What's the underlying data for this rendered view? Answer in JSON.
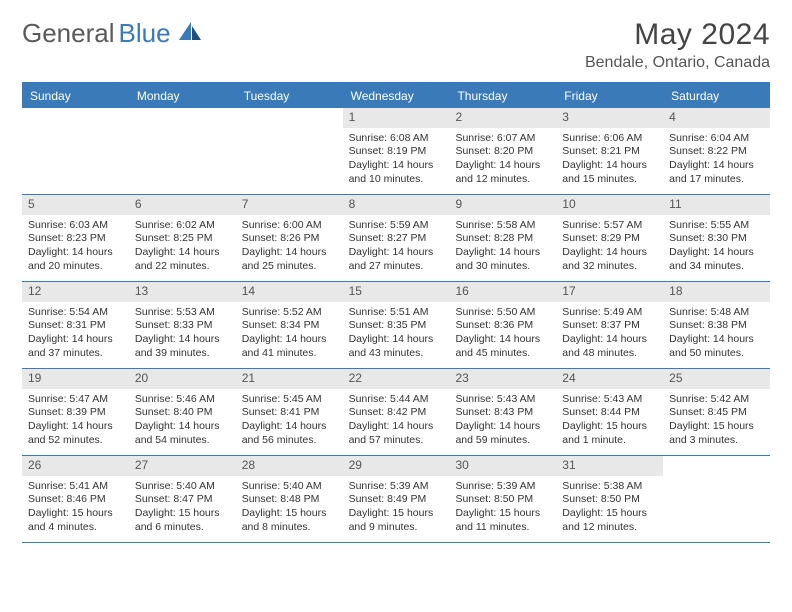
{
  "brand": {
    "part1": "General",
    "part2": "Blue"
  },
  "title": "May 2024",
  "location": "Bendale, Ontario, Canada",
  "colors": {
    "accent": "#3a7ab8",
    "dayNumBg": "#e8e8e8",
    "text": "#333333",
    "headerText": "#ffffff",
    "background": "#ffffff"
  },
  "dayHeaders": [
    "Sunday",
    "Monday",
    "Tuesday",
    "Wednesday",
    "Thursday",
    "Friday",
    "Saturday"
  ],
  "weeks": [
    [
      {
        "empty": true
      },
      {
        "empty": true
      },
      {
        "empty": true
      },
      {
        "num": "1",
        "sunrise": "Sunrise: 6:08 AM",
        "sunset": "Sunset: 8:19 PM",
        "day1": "Daylight: 14 hours",
        "day2": "and 10 minutes."
      },
      {
        "num": "2",
        "sunrise": "Sunrise: 6:07 AM",
        "sunset": "Sunset: 8:20 PM",
        "day1": "Daylight: 14 hours",
        "day2": "and 12 minutes."
      },
      {
        "num": "3",
        "sunrise": "Sunrise: 6:06 AM",
        "sunset": "Sunset: 8:21 PM",
        "day1": "Daylight: 14 hours",
        "day2": "and 15 minutes."
      },
      {
        "num": "4",
        "sunrise": "Sunrise: 6:04 AM",
        "sunset": "Sunset: 8:22 PM",
        "day1": "Daylight: 14 hours",
        "day2": "and 17 minutes."
      }
    ],
    [
      {
        "num": "5",
        "sunrise": "Sunrise: 6:03 AM",
        "sunset": "Sunset: 8:23 PM",
        "day1": "Daylight: 14 hours",
        "day2": "and 20 minutes."
      },
      {
        "num": "6",
        "sunrise": "Sunrise: 6:02 AM",
        "sunset": "Sunset: 8:25 PM",
        "day1": "Daylight: 14 hours",
        "day2": "and 22 minutes."
      },
      {
        "num": "7",
        "sunrise": "Sunrise: 6:00 AM",
        "sunset": "Sunset: 8:26 PM",
        "day1": "Daylight: 14 hours",
        "day2": "and 25 minutes."
      },
      {
        "num": "8",
        "sunrise": "Sunrise: 5:59 AM",
        "sunset": "Sunset: 8:27 PM",
        "day1": "Daylight: 14 hours",
        "day2": "and 27 minutes."
      },
      {
        "num": "9",
        "sunrise": "Sunrise: 5:58 AM",
        "sunset": "Sunset: 8:28 PM",
        "day1": "Daylight: 14 hours",
        "day2": "and 30 minutes."
      },
      {
        "num": "10",
        "sunrise": "Sunrise: 5:57 AM",
        "sunset": "Sunset: 8:29 PM",
        "day1": "Daylight: 14 hours",
        "day2": "and 32 minutes."
      },
      {
        "num": "11",
        "sunrise": "Sunrise: 5:55 AM",
        "sunset": "Sunset: 8:30 PM",
        "day1": "Daylight: 14 hours",
        "day2": "and 34 minutes."
      }
    ],
    [
      {
        "num": "12",
        "sunrise": "Sunrise: 5:54 AM",
        "sunset": "Sunset: 8:31 PM",
        "day1": "Daylight: 14 hours",
        "day2": "and 37 minutes."
      },
      {
        "num": "13",
        "sunrise": "Sunrise: 5:53 AM",
        "sunset": "Sunset: 8:33 PM",
        "day1": "Daylight: 14 hours",
        "day2": "and 39 minutes."
      },
      {
        "num": "14",
        "sunrise": "Sunrise: 5:52 AM",
        "sunset": "Sunset: 8:34 PM",
        "day1": "Daylight: 14 hours",
        "day2": "and 41 minutes."
      },
      {
        "num": "15",
        "sunrise": "Sunrise: 5:51 AM",
        "sunset": "Sunset: 8:35 PM",
        "day1": "Daylight: 14 hours",
        "day2": "and 43 minutes."
      },
      {
        "num": "16",
        "sunrise": "Sunrise: 5:50 AM",
        "sunset": "Sunset: 8:36 PM",
        "day1": "Daylight: 14 hours",
        "day2": "and 45 minutes."
      },
      {
        "num": "17",
        "sunrise": "Sunrise: 5:49 AM",
        "sunset": "Sunset: 8:37 PM",
        "day1": "Daylight: 14 hours",
        "day2": "and 48 minutes."
      },
      {
        "num": "18",
        "sunrise": "Sunrise: 5:48 AM",
        "sunset": "Sunset: 8:38 PM",
        "day1": "Daylight: 14 hours",
        "day2": "and 50 minutes."
      }
    ],
    [
      {
        "num": "19",
        "sunrise": "Sunrise: 5:47 AM",
        "sunset": "Sunset: 8:39 PM",
        "day1": "Daylight: 14 hours",
        "day2": "and 52 minutes."
      },
      {
        "num": "20",
        "sunrise": "Sunrise: 5:46 AM",
        "sunset": "Sunset: 8:40 PM",
        "day1": "Daylight: 14 hours",
        "day2": "and 54 minutes."
      },
      {
        "num": "21",
        "sunrise": "Sunrise: 5:45 AM",
        "sunset": "Sunset: 8:41 PM",
        "day1": "Daylight: 14 hours",
        "day2": "and 56 minutes."
      },
      {
        "num": "22",
        "sunrise": "Sunrise: 5:44 AM",
        "sunset": "Sunset: 8:42 PM",
        "day1": "Daylight: 14 hours",
        "day2": "and 57 minutes."
      },
      {
        "num": "23",
        "sunrise": "Sunrise: 5:43 AM",
        "sunset": "Sunset: 8:43 PM",
        "day1": "Daylight: 14 hours",
        "day2": "and 59 minutes."
      },
      {
        "num": "24",
        "sunrise": "Sunrise: 5:43 AM",
        "sunset": "Sunset: 8:44 PM",
        "day1": "Daylight: 15 hours",
        "day2": "and 1 minute."
      },
      {
        "num": "25",
        "sunrise": "Sunrise: 5:42 AM",
        "sunset": "Sunset: 8:45 PM",
        "day1": "Daylight: 15 hours",
        "day2": "and 3 minutes."
      }
    ],
    [
      {
        "num": "26",
        "sunrise": "Sunrise: 5:41 AM",
        "sunset": "Sunset: 8:46 PM",
        "day1": "Daylight: 15 hours",
        "day2": "and 4 minutes."
      },
      {
        "num": "27",
        "sunrise": "Sunrise: 5:40 AM",
        "sunset": "Sunset: 8:47 PM",
        "day1": "Daylight: 15 hours",
        "day2": "and 6 minutes."
      },
      {
        "num": "28",
        "sunrise": "Sunrise: 5:40 AM",
        "sunset": "Sunset: 8:48 PM",
        "day1": "Daylight: 15 hours",
        "day2": "and 8 minutes."
      },
      {
        "num": "29",
        "sunrise": "Sunrise: 5:39 AM",
        "sunset": "Sunset: 8:49 PM",
        "day1": "Daylight: 15 hours",
        "day2": "and 9 minutes."
      },
      {
        "num": "30",
        "sunrise": "Sunrise: 5:39 AM",
        "sunset": "Sunset: 8:50 PM",
        "day1": "Daylight: 15 hours",
        "day2": "and 11 minutes."
      },
      {
        "num": "31",
        "sunrise": "Sunrise: 5:38 AM",
        "sunset": "Sunset: 8:50 PM",
        "day1": "Daylight: 15 hours",
        "day2": "and 12 minutes."
      },
      {
        "empty": true
      }
    ]
  ]
}
